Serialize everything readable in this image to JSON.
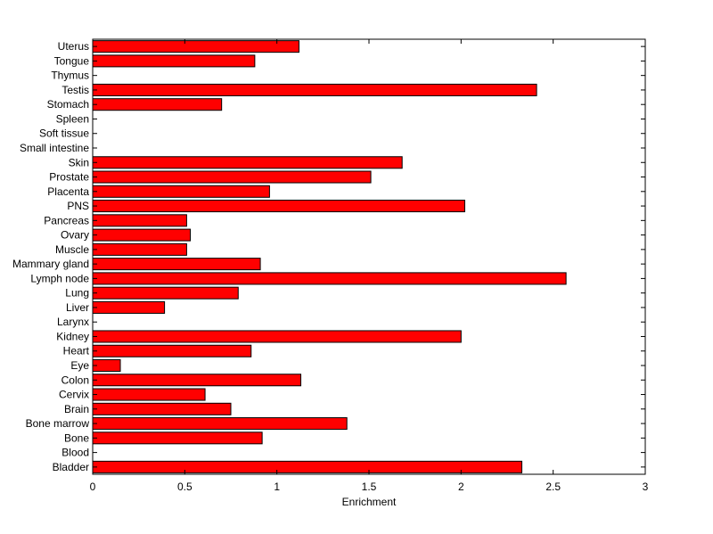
{
  "chart_data": {
    "type": "bar",
    "orientation": "horizontal",
    "categories": [
      "Bladder",
      "Blood",
      "Bone",
      "Bone marrow",
      "Brain",
      "Cervix",
      "Colon",
      "Eye",
      "Heart",
      "Kidney",
      "Larynx",
      "Liver",
      "Lung",
      "Lymph node",
      "Mammary gland",
      "Muscle",
      "Ovary",
      "Pancreas",
      "PNS",
      "Placenta",
      "Prostate",
      "Skin",
      "Small intestine",
      "Soft tissue",
      "Spleen",
      "Stomach",
      "Testis",
      "Thymus",
      "Tongue",
      "Uterus"
    ],
    "values": [
      2.33,
      0,
      0.92,
      1.38,
      0.75,
      0.61,
      1.13,
      0.15,
      0.86,
      2.0,
      0,
      0.39,
      0.79,
      2.57,
      0.91,
      0.51,
      0.53,
      0.51,
      2.02,
      0.96,
      1.51,
      1.68,
      0,
      0,
      0,
      0.7,
      2.41,
      0,
      0.88,
      1.12
    ],
    "title": "",
    "xlabel": "Enrichment",
    "ylabel": "",
    "xlim": [
      0,
      3
    ],
    "xticks": [
      "0",
      "0.5",
      "1",
      "1.5",
      "2",
      "2.5",
      "3"
    ],
    "bar_color": "#ff0000",
    "bar_edge_color": "#000000",
    "grid": false
  }
}
